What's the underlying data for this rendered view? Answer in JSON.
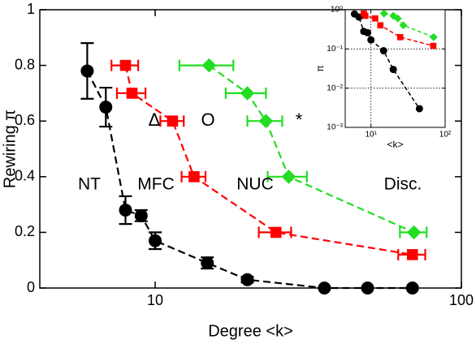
{
  "chart_data": [
    {
      "type": "scatter-line",
      "x_label": "Degree <k>",
      "y_label": "Rewiring π",
      "xscale": "log",
      "xlim": [
        4.2,
        100
      ],
      "ylim": [
        0,
        1
      ],
      "xticks": [
        10,
        100
      ],
      "yticks": [
        0,
        0.2,
        0.4,
        0.6,
        0.8,
        1
      ],
      "annotations": [
        "NT",
        "MFC",
        "NUC",
        "Disc.",
        "Δ",
        "O",
        "*"
      ],
      "series": [
        {
          "color": "#000000",
          "marker": "circle",
          "x": [
            6.0,
            6.9,
            8.0,
            9.0,
            10,
            14.8,
            20.0,
            35.7,
            49.4,
            69.2
          ],
          "values": [
            0.78,
            0.65,
            0.28,
            0.26,
            0.17,
            0.09,
            0.03,
            0,
            0,
            0
          ],
          "yerr": [
            0.1,
            0.07,
            0.05,
            0.02,
            0.03,
            0.02,
            0.01,
            0,
            0,
            0
          ]
        },
        {
          "color": "#ff0000",
          "marker": "square",
          "x": [
            8.0,
            8.4,
            11.4,
            13.4,
            24.8,
            69.2
          ],
          "values": [
            0.8,
            0.7,
            0.6,
            0.4,
            0.2,
            0.12
          ],
          "xerr": [
            0.8,
            0.9,
            1.0,
            1.2,
            3,
            7
          ]
        },
        {
          "color": "#22dd22",
          "marker": "diamond",
          "x": [
            15,
            20,
            23.0,
            27.3,
            70
          ],
          "values": [
            0.8,
            0.7,
            0.6,
            0.4,
            0.2
          ],
          "xerr": [
            3,
            3,
            3,
            4,
            7
          ]
        }
      ]
    },
    {
      "type": "scatter-line",
      "x_label": "<k>",
      "y_label": "π",
      "xscale": "log",
      "yscale": "log",
      "grid": true,
      "xlim": [
        4.5,
        100
      ],
      "ylim": [
        0.001,
        1
      ],
      "xticks": [
        {
          "value": 10,
          "label": "10¹"
        },
        {
          "value": 100,
          "label": "10²"
        }
      ],
      "yticks": [
        {
          "value": 0.001,
          "label": "10⁻³"
        },
        {
          "value": 0.01,
          "label": "10⁻²"
        },
        {
          "value": 0.1,
          "label": "10⁻¹"
        },
        {
          "value": 1,
          "label": "10⁰"
        }
      ],
      "series": [
        {
          "color": "#000000",
          "marker": "circle",
          "x": [
            6.0,
            6.9,
            8.0,
            9.0,
            10,
            14.8,
            20.0,
            45
          ],
          "values": [
            0.78,
            0.65,
            0.28,
            0.26,
            0.17,
            0.09,
            0.03,
            0.003
          ]
        },
        {
          "color": "#ff0000",
          "marker": "square",
          "x": [
            8.0,
            8.4,
            11.4,
            13.4,
            24.8,
            69.2
          ],
          "values": [
            0.8,
            0.7,
            0.6,
            0.4,
            0.2,
            0.12
          ]
        },
        {
          "color": "#22dd22",
          "marker": "diamond",
          "x": [
            15,
            20,
            23.0,
            27.3,
            70
          ],
          "values": [
            0.8,
            0.7,
            0.6,
            0.4,
            0.2
          ]
        }
      ]
    }
  ]
}
